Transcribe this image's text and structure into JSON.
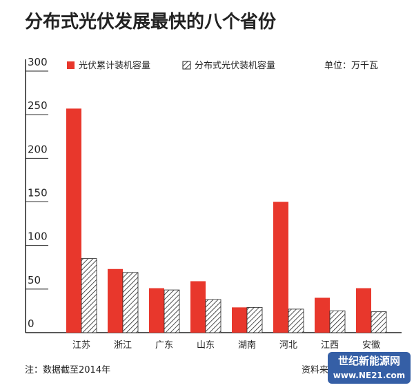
{
  "chart_data": {
    "type": "bar",
    "title": "分布式光伏发展最快的八个省份",
    "unit": "单位：万千瓦",
    "categories": [
      "江苏",
      "浙江",
      "广东",
      "山东",
      "湖南",
      "河北",
      "江西",
      "安徽"
    ],
    "series": [
      {
        "name": "光伏累计装机容量",
        "color": "#e8372c",
        "hatch": false,
        "values": [
          257,
          73,
          51,
          59,
          29,
          150,
          40,
          51
        ]
      },
      {
        "name": "分布式光伏装机容量",
        "color": "#222222",
        "hatch": true,
        "values": [
          85,
          69,
          49,
          38,
          29,
          27,
          25,
          24
        ]
      }
    ],
    "ylim": [
      0,
      300
    ],
    "yticks": [
      0,
      50,
      100,
      150,
      200,
      250,
      300
    ],
    "note": "注：数据截至2014年",
    "source": "资料来",
    "watermark": {
      "name": "世纪新能源网",
      "url": "www.NE21.com"
    }
  }
}
